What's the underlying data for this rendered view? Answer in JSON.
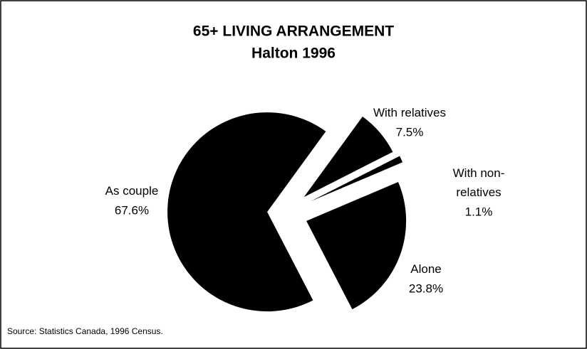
{
  "chart_data": {
    "type": "pie",
    "title": "65+ LIVING ARRANGEMENT",
    "subtitle": "Halton 1996",
    "categories": [
      "With relatives",
      "With non-relatives",
      "Alone",
      "As couple"
    ],
    "values": [
      7.5,
      1.1,
      23.8,
      67.6
    ],
    "value_labels": [
      "7.5%",
      "1.1%",
      "23.8%",
      "67.6%"
    ],
    "color": "#000000",
    "source": "Source: Statistics Canada, 1996 Census."
  }
}
